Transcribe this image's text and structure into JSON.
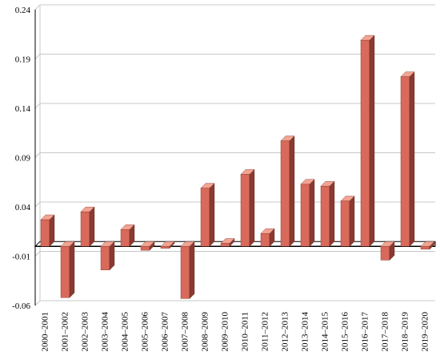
{
  "chart_data": {
    "type": "bar",
    "title": "",
    "xlabel": "",
    "ylabel": "",
    "categories": [
      "2000–2001",
      "2001–2002",
      "2002–2003",
      "2003–2004",
      "2004–2005",
      "2005–2006",
      "2006–2007",
      "2007–2008",
      "2008–2009",
      "2009–2010",
      "2010–2011",
      "2011–2012",
      "2012–2013",
      "2013–2014",
      "2014–2015",
      "2015–2016",
      "2016–2017",
      "2017–2018",
      "2018–2019",
      "2019–2020"
    ],
    "values": [
      0.027,
      -0.052,
      0.035,
      -0.024,
      0.017,
      -0.004,
      -0.002,
      -0.053,
      0.059,
      0.003,
      0.073,
      0.013,
      0.107,
      0.063,
      0.061,
      0.046,
      0.209,
      -0.014,
      0.172,
      -0.003
    ],
    "ylim": [
      -0.06,
      0.24
    ],
    "yticks": [
      "0.24",
      "0.19",
      "0.14",
      "0.09",
      "0.04",
      "-0.01",
      "-0.06"
    ],
    "grid": true,
    "legend": "none",
    "colors": {
      "front": "#d9695a",
      "side": "#8a3a30",
      "top": "#f2a493",
      "grid": "#c8c8c8",
      "axis": "#000000"
    }
  }
}
